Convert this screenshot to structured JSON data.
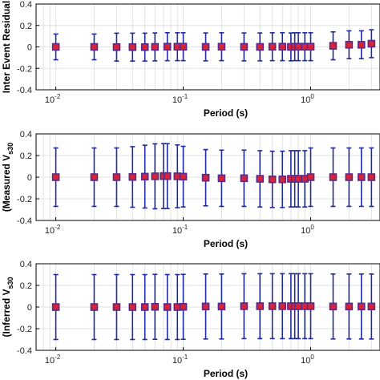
{
  "chart_data": [
    {
      "type": "scatter",
      "xlabel": "Period (s)",
      "ylabel": "Inter Event Residual",
      "xscale": "log",
      "xlim": [
        0.007,
        3.5
      ],
      "ylim": [
        -0.4,
        0.4
      ],
      "yticks": [
        -0.4,
        -0.2,
        0,
        0.2,
        0.4
      ],
      "xticks": [
        0.01,
        0.1,
        1
      ],
      "xtick_labels": [
        [
          "10",
          "-2"
        ],
        [
          "10",
          "-1"
        ],
        [
          "10",
          "0"
        ]
      ],
      "grid": true,
      "x": [
        0.01,
        0.02,
        0.03,
        0.04,
        0.05,
        0.06,
        0.075,
        0.09,
        0.1,
        0.15,
        0.2,
        0.3,
        0.4,
        0.5,
        0.6,
        0.7,
        0.75,
        0.8,
        0.9,
        1.0,
        1.5,
        2.0,
        2.5,
        3.0
      ],
      "y": [
        0.0,
        0.0,
        -0.002,
        -0.002,
        -0.002,
        0.0,
        0.002,
        0.002,
        0.002,
        0.0,
        0.002,
        0.0,
        0.0,
        0.002,
        0.002,
        0.0,
        0.002,
        0.002,
        0.002,
        0.002,
        0.01,
        0.02,
        0.02,
        0.03
      ],
      "err": [
        0.12,
        0.12,
        0.13,
        0.13,
        0.13,
        0.13,
        0.13,
        0.13,
        0.13,
        0.13,
        0.13,
        0.13,
        0.13,
        0.13,
        0.13,
        0.13,
        0.13,
        0.13,
        0.13,
        0.13,
        0.13,
        0.13,
        0.13,
        0.13
      ]
    },
    {
      "type": "scatter",
      "xlabel": "Period (s)",
      "ylabel": "(Measured V",
      "ylabel_sub": "s30",
      "xscale": "log",
      "xlim": [
        0.007,
        3.5
      ],
      "ylim": [
        -0.4,
        0.4
      ],
      "yticks": [
        -0.4,
        -0.2,
        0,
        0.2,
        0.4
      ],
      "xticks": [
        0.01,
        0.1,
        1
      ],
      "xtick_labels": [
        [
          "10",
          "-2"
        ],
        [
          "10",
          "-1"
        ],
        [
          "10",
          "0"
        ]
      ],
      "grid": true,
      "x": [
        0.01,
        0.02,
        0.03,
        0.04,
        0.05,
        0.06,
        0.07,
        0.075,
        0.09,
        0.1,
        0.15,
        0.2,
        0.3,
        0.4,
        0.5,
        0.6,
        0.7,
        0.75,
        0.8,
        0.9,
        1.0,
        1.5,
        2.0,
        2.5,
        3.0
      ],
      "y": [
        0.0,
        0.0,
        0.0,
        0.002,
        0.005,
        0.008,
        0.01,
        0.01,
        0.008,
        0.005,
        -0.005,
        -0.01,
        -0.01,
        -0.015,
        -0.02,
        -0.02,
        -0.015,
        -0.015,
        -0.015,
        -0.015,
        0.0,
        0.0,
        0.0,
        0.0,
        0.0
      ],
      "err": [
        0.27,
        0.27,
        0.27,
        0.28,
        0.29,
        0.3,
        0.3,
        0.3,
        0.29,
        0.28,
        0.26,
        0.26,
        0.26,
        0.26,
        0.26,
        0.26,
        0.26,
        0.26,
        0.26,
        0.26,
        0.27,
        0.27,
        0.27,
        0.27,
        0.27
      ]
    },
    {
      "type": "scatter",
      "xlabel": "Period (s)",
      "ylabel": "(Inferred V",
      "ylabel_sub": "s30",
      "xscale": "log",
      "xlim": [
        0.007,
        3.5
      ],
      "ylim": [
        -0.4,
        0.4
      ],
      "yticks": [
        -0.4,
        -0.2,
        0,
        0.2,
        0.4
      ],
      "xticks": [
        0.01,
        0.1,
        1
      ],
      "xtick_labels": [
        [
          "10",
          "-2"
        ],
        [
          "10",
          "-1"
        ],
        [
          "10",
          "0"
        ]
      ],
      "grid": true,
      "x": [
        0.01,
        0.02,
        0.03,
        0.04,
        0.05,
        0.06,
        0.075,
        0.09,
        0.1,
        0.15,
        0.2,
        0.3,
        0.4,
        0.5,
        0.6,
        0.7,
        0.75,
        0.8,
        0.9,
        1.0,
        1.5,
        2.0,
        2.5,
        3.0
      ],
      "y": [
        0.0,
        0.0,
        0.0,
        0.0,
        0.0,
        0.002,
        0.0,
        0.0,
        0.002,
        0.005,
        0.005,
        0.008,
        0.008,
        0.008,
        0.008,
        0.008,
        0.008,
        0.008,
        0.008,
        0.008,
        0.005,
        0.005,
        0.005,
        0.005
      ],
      "err": [
        0.3,
        0.3,
        0.3,
        0.3,
        0.3,
        0.3,
        0.3,
        0.3,
        0.3,
        0.3,
        0.3,
        0.3,
        0.3,
        0.3,
        0.3,
        0.3,
        0.3,
        0.3,
        0.3,
        0.3,
        0.3,
        0.3,
        0.3,
        0.3
      ]
    }
  ],
  "colors": {
    "marker_fill": "#d6233a",
    "marker_edge": "#5a2a8a",
    "errorbar": "#1f2a9c",
    "grid": "#e2e2e2"
  }
}
